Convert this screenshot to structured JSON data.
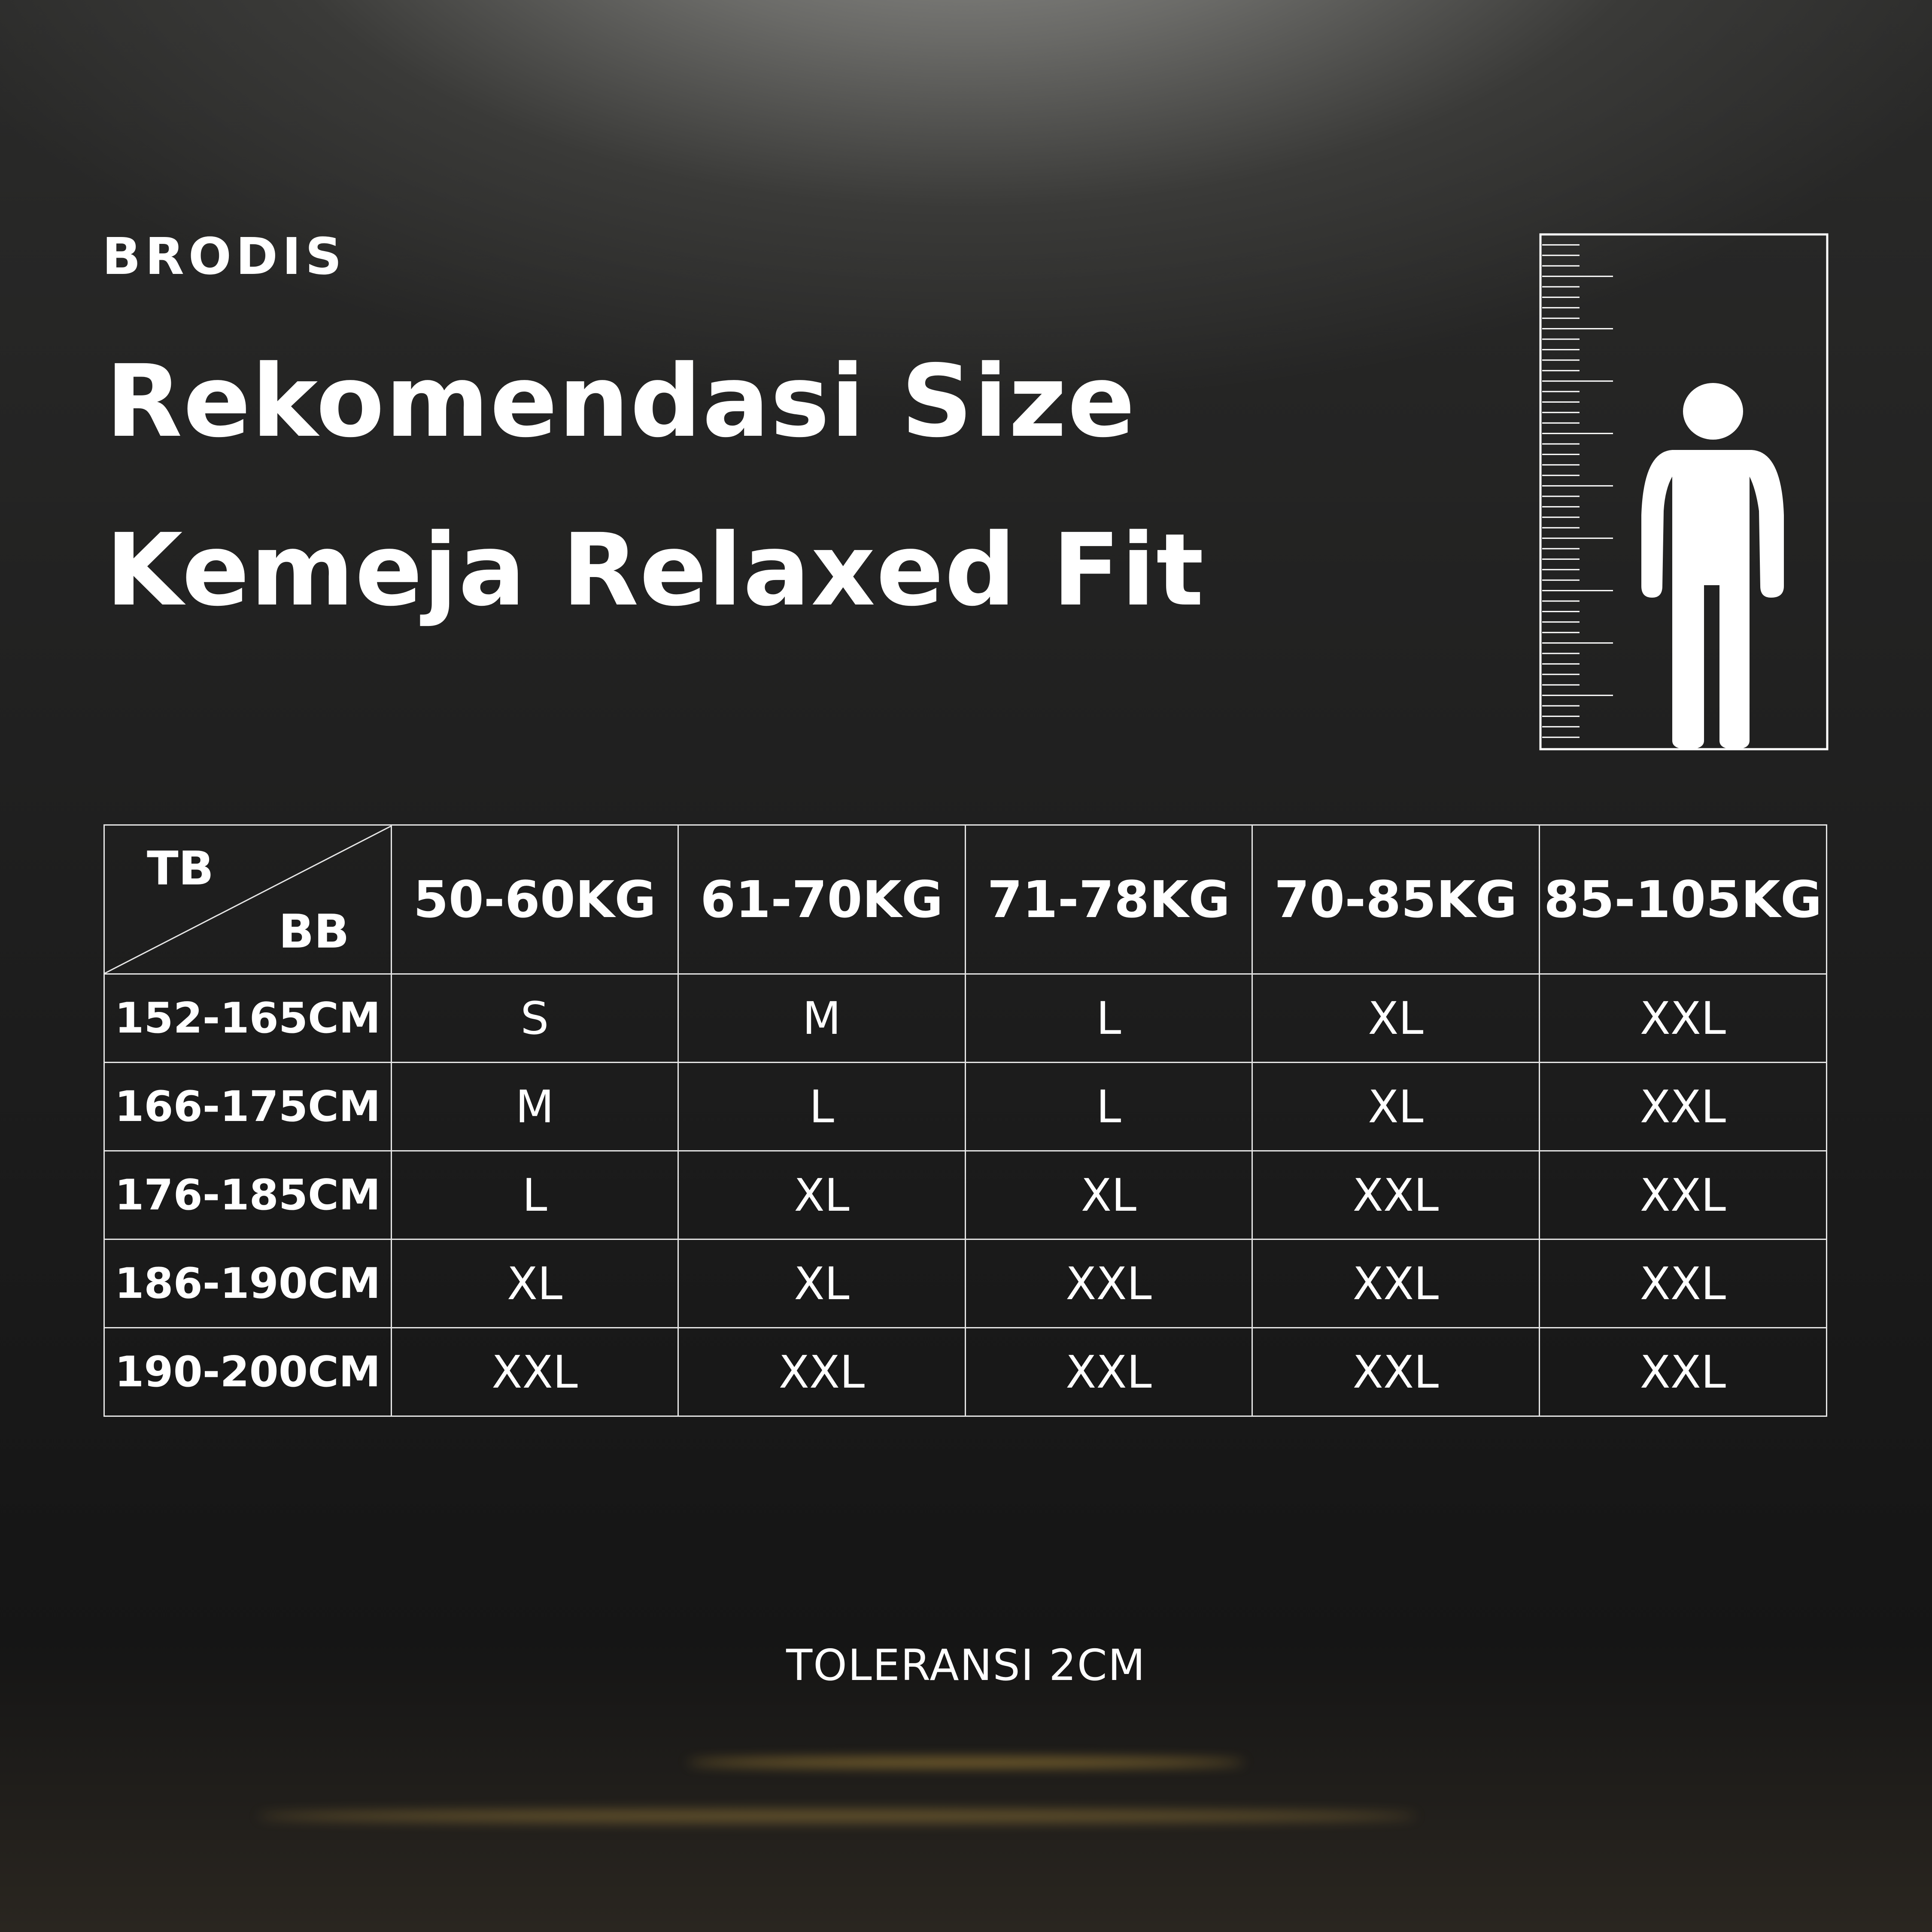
{
  "brand": {
    "logo": "BRODIS"
  },
  "title": {
    "line1": "Rekomendasi Size",
    "line2": "Kemeja Relaxed Fit"
  },
  "illustration": {
    "icon": "person-height-ruler-icon"
  },
  "table": {
    "corner": {
      "top": "TB",
      "bottom": "BB"
    },
    "columns": [
      "50-60KG",
      "61-70KG",
      "71-78KG",
      "70-85KG",
      "85-105KG"
    ],
    "rows": [
      {
        "height": "152-165CM",
        "sizes": [
          "S",
          "M",
          "L",
          "XL",
          "XXL"
        ]
      },
      {
        "height": "166-175CM",
        "sizes": [
          "M",
          "L",
          "L",
          "XL",
          "XXL"
        ]
      },
      {
        "height": "176-185CM",
        "sizes": [
          "L",
          "XL",
          "XL",
          "XXL",
          "XXL"
        ]
      },
      {
        "height": "186-190CM",
        "sizes": [
          "XL",
          "XL",
          "XXL",
          "XXL",
          "XXL"
        ]
      },
      {
        "height": "190-200CM",
        "sizes": [
          "XXL",
          "XXL",
          "XXL",
          "XXL",
          "XXL"
        ]
      }
    ]
  },
  "footer": {
    "note": "TOLERANSI 2CM"
  },
  "colors": {
    "text": "#ffffff",
    "glow": "#d9a93a"
  }
}
